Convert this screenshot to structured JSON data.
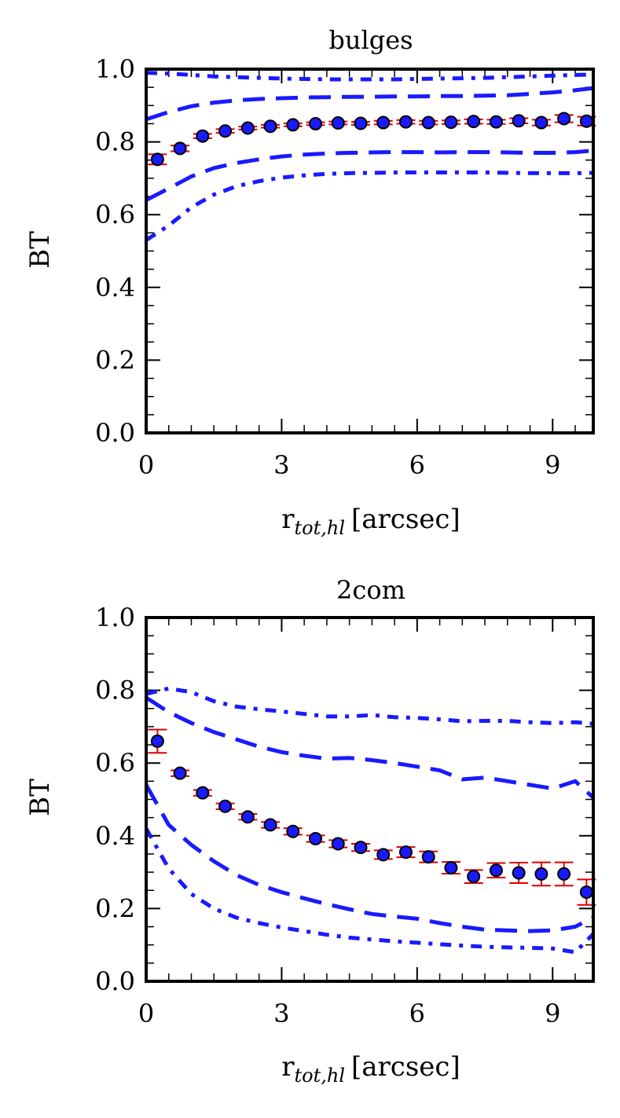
{
  "chart_data": [
    {
      "type": "scatter",
      "title": "bulges",
      "xlabel_main": "r",
      "xlabel_sub": "tot,hl",
      "xlabel_unit": "[arcsec]",
      "ylabel": "BT",
      "xlim": [
        0,
        9.9
      ],
      "ylim": [
        0,
        1
      ],
      "xticks": [
        "0",
        "3",
        "6",
        "9"
      ],
      "yticks": [
        "0.0",
        "0.2",
        "0.4",
        "0.6",
        "0.8",
        "1.0"
      ],
      "colors": {
        "points": "#1a1aff",
        "errorbars": "#dd0000",
        "lines": "#1a1aff"
      },
      "series": [
        {
          "style": "points-with-errorbars",
          "x": [
            0.25,
            0.75,
            1.25,
            1.75,
            2.25,
            2.75,
            3.25,
            3.75,
            4.25,
            4.75,
            5.25,
            5.75,
            6.25,
            6.75,
            7.25,
            7.75,
            8.25,
            8.75,
            9.25,
            9.75
          ],
          "y": [
            0.752,
            0.782,
            0.816,
            0.83,
            0.838,
            0.843,
            0.847,
            0.85,
            0.852,
            0.851,
            0.853,
            0.855,
            0.853,
            0.854,
            0.856,
            0.855,
            0.858,
            0.853,
            0.864,
            0.857
          ],
          "err": [
            0.014,
            0.008,
            0.006,
            0.005,
            0.004,
            0.004,
            0.004,
            0.004,
            0.004,
            0.004,
            0.005,
            0.005,
            0.005,
            0.005,
            0.006,
            0.006,
            0.007,
            0.008,
            0.01,
            0.012
          ]
        },
        {
          "style": "dashed",
          "x": [
            0,
            0.5,
            1,
            1.5,
            2,
            2.5,
            3,
            3.5,
            4,
            4.5,
            5,
            5.5,
            6,
            6.5,
            7,
            7.5,
            8,
            8.5,
            9,
            9.5,
            9.9
          ],
          "y": [
            0.862,
            0.882,
            0.898,
            0.908,
            0.914,
            0.918,
            0.92,
            0.922,
            0.923,
            0.924,
            0.924,
            0.925,
            0.925,
            0.926,
            0.926,
            0.927,
            0.928,
            0.932,
            0.936,
            0.942,
            0.948
          ]
        },
        {
          "style": "dashed",
          "x": [
            0,
            0.5,
            1,
            1.5,
            2,
            2.5,
            3,
            3.5,
            4,
            4.5,
            5,
            5.5,
            6,
            6.5,
            7,
            7.5,
            8,
            8.5,
            9,
            9.5,
            9.9
          ],
          "y": [
            0.64,
            0.672,
            0.705,
            0.728,
            0.742,
            0.752,
            0.76,
            0.765,
            0.768,
            0.77,
            0.771,
            0.772,
            0.772,
            0.771,
            0.772,
            0.772,
            0.771,
            0.77,
            0.77,
            0.772,
            0.776
          ]
        },
        {
          "style": "dashdot",
          "x": [
            0,
            0.5,
            1,
            1.5,
            2,
            2.5,
            3,
            3.5,
            4,
            4.5,
            5,
            5.5,
            6,
            6.5,
            7,
            7.5,
            8,
            8.5,
            9,
            9.5,
            9.9
          ],
          "y": [
            0.99,
            0.988,
            0.984,
            0.98,
            0.978,
            0.976,
            0.974,
            0.973,
            0.972,
            0.972,
            0.972,
            0.972,
            0.973,
            0.974,
            0.975,
            0.976,
            0.978,
            0.98,
            0.982,
            0.984,
            0.985
          ]
        },
        {
          "style": "dashdot",
          "x": [
            0,
            0.5,
            1,
            1.5,
            2,
            2.5,
            3,
            3.5,
            4,
            4.5,
            5,
            5.5,
            6,
            6.5,
            7,
            7.5,
            8,
            8.5,
            9,
            9.5,
            9.9
          ],
          "y": [
            0.53,
            0.57,
            0.62,
            0.655,
            0.678,
            0.692,
            0.702,
            0.708,
            0.712,
            0.714,
            0.715,
            0.716,
            0.716,
            0.716,
            0.716,
            0.716,
            0.715,
            0.714,
            0.714,
            0.714,
            0.715
          ]
        }
      ]
    },
    {
      "type": "scatter",
      "title": "2com",
      "xlabel_main": "r",
      "xlabel_sub": "tot,hl",
      "xlabel_unit": "[arcsec]",
      "ylabel": "BT",
      "xlim": [
        0,
        9.9
      ],
      "ylim": [
        0,
        1
      ],
      "xticks": [
        "0",
        "3",
        "6",
        "9"
      ],
      "yticks": [
        "0.0",
        "0.2",
        "0.4",
        "0.6",
        "0.8",
        "1.0"
      ],
      "colors": {
        "points": "#1a1aff",
        "errorbars": "#dd0000",
        "lines": "#1a1aff"
      },
      "series": [
        {
          "style": "points-with-errorbars",
          "x": [
            0.25,
            0.75,
            1.25,
            1.75,
            2.25,
            2.75,
            3.25,
            3.75,
            4.25,
            4.75,
            5.25,
            5.75,
            6.25,
            6.75,
            7.25,
            7.75,
            8.25,
            8.75,
            9.25,
            9.75
          ],
          "y": [
            0.66,
            0.572,
            0.518,
            0.481,
            0.452,
            0.43,
            0.412,
            0.392,
            0.378,
            0.368,
            0.348,
            0.355,
            0.342,
            0.312,
            0.288,
            0.305,
            0.298,
            0.295,
            0.295,
            0.245
          ],
          "err": [
            0.032,
            0.008,
            0.008,
            0.008,
            0.008,
            0.008,
            0.009,
            0.009,
            0.01,
            0.01,
            0.012,
            0.014,
            0.015,
            0.016,
            0.018,
            0.02,
            0.028,
            0.032,
            0.032,
            0.035
          ]
        },
        {
          "style": "dashed",
          "x": [
            0,
            0.5,
            1,
            1.5,
            2,
            2.5,
            3,
            3.5,
            4,
            4.5,
            5,
            5.5,
            6,
            6.5,
            7,
            7.5,
            8,
            8.5,
            9,
            9.5,
            9.9
          ],
          "y": [
            0.78,
            0.74,
            0.71,
            0.685,
            0.665,
            0.645,
            0.63,
            0.62,
            0.612,
            0.614,
            0.608,
            0.6,
            0.59,
            0.58,
            0.555,
            0.56,
            0.55,
            0.54,
            0.53,
            0.55,
            0.505
          ]
        },
        {
          "style": "dashed",
          "x": [
            0,
            0.5,
            1,
            1.5,
            2,
            2.5,
            3,
            3.5,
            4,
            4.5,
            5,
            5.5,
            6,
            6.5,
            7,
            7.5,
            8,
            8.5,
            9,
            9.5,
            9.9
          ],
          "y": [
            0.54,
            0.43,
            0.375,
            0.33,
            0.292,
            0.265,
            0.245,
            0.228,
            0.212,
            0.198,
            0.185,
            0.178,
            0.172,
            0.16,
            0.15,
            0.142,
            0.14,
            0.138,
            0.14,
            0.15,
            0.175
          ]
        },
        {
          "style": "dashdot",
          "x": [
            0,
            0.5,
            1,
            1.5,
            2,
            2.5,
            3,
            3.5,
            4,
            4.5,
            5,
            5.5,
            6,
            6.5,
            7,
            7.5,
            8,
            8.5,
            9,
            9.5,
            9.9
          ],
          "y": [
            0.79,
            0.805,
            0.795,
            0.77,
            0.755,
            0.748,
            0.742,
            0.735,
            0.728,
            0.728,
            0.732,
            0.726,
            0.724,
            0.72,
            0.715,
            0.716,
            0.716,
            0.712,
            0.71,
            0.712,
            0.708
          ]
        },
        {
          "style": "dashdot",
          "x": [
            0,
            0.5,
            1,
            1.5,
            2,
            2.5,
            3,
            3.5,
            4,
            4.5,
            5,
            5.5,
            6,
            6.5,
            7,
            7.5,
            8,
            8.5,
            9,
            9.5,
            9.9
          ],
          "y": [
            0.42,
            0.31,
            0.24,
            0.2,
            0.175,
            0.16,
            0.148,
            0.138,
            0.128,
            0.12,
            0.115,
            0.11,
            0.106,
            0.102,
            0.098,
            0.095,
            0.093,
            0.092,
            0.09,
            0.08,
            0.13
          ]
        }
      ]
    }
  ]
}
